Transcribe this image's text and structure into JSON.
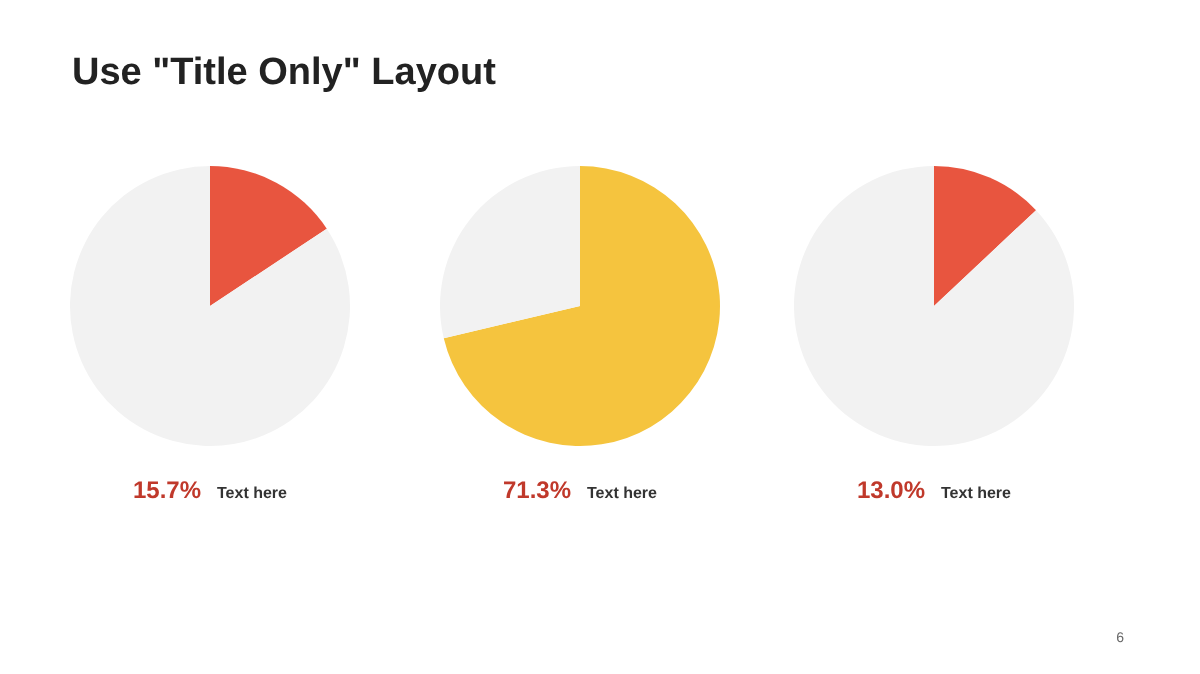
{
  "chart_data": [
    {
      "type": "pie",
      "title": "Use \"Title Only\" Layout",
      "categories": [
        null,
        null
      ],
      "values": [
        15.7,
        84.3
      ],
      "colors": [
        "#e8553f",
        "#f2f2f2"
      ],
      "annotations": [
        "15.7%",
        "Text here"
      ]
    },
    {
      "type": "pie",
      "categories": [
        null,
        null
      ],
      "values": [
        71.3,
        28.7
      ],
      "colors": [
        "#f5c43e",
        "#f2f2f2"
      ],
      "annotations": [
        "71.3%",
        "Text here"
      ]
    },
    {
      "type": "pie",
      "categories": [
        null,
        null
      ],
      "values": [
        13.0,
        87.0
      ],
      "colors": [
        "#e8553f",
        "#f2f2f2"
      ],
      "annotations": [
        "13.0%",
        "Text here",
        "6"
      ]
    }
  ]
}
